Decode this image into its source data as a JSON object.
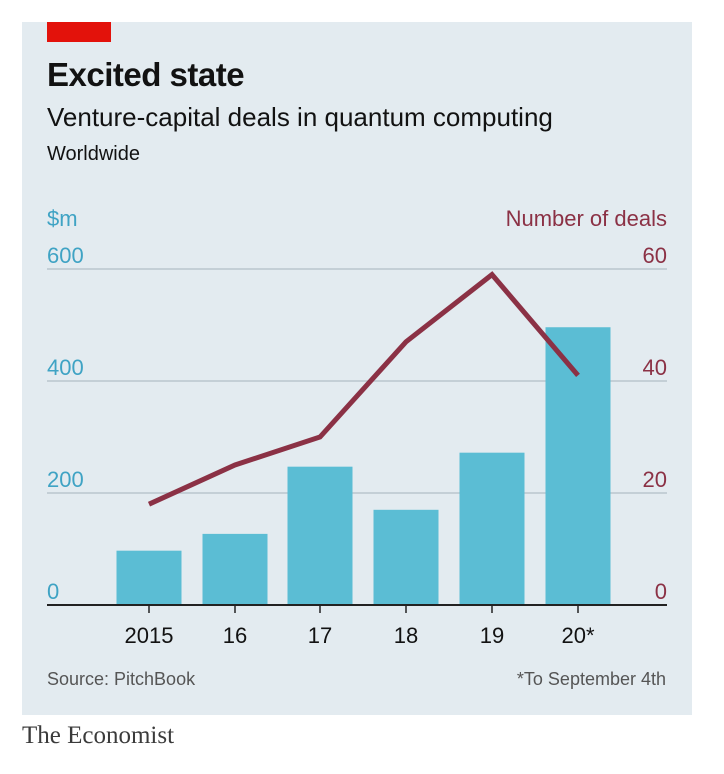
{
  "header": {
    "title": "Excited state",
    "subtitle": "Venture-capital deals in quantum computing",
    "scope": "Worldwide"
  },
  "footer": {
    "source": "Source: PitchBook",
    "footnote": "*To September 4th"
  },
  "brand": "The Economist",
  "colors": {
    "bars": "#5bbdd4",
    "line": "#8b3145",
    "left_axis": "#3fa3c4",
    "right_axis": "#8b3145",
    "panel": "#e3ebf0",
    "accent": "#e3120b"
  },
  "chart_data": {
    "type": "bar",
    "categories": [
      "2015",
      "16",
      "17",
      "18",
      "19",
      "20*"
    ],
    "left_axis": {
      "label": "$m",
      "ylim": [
        0,
        600
      ],
      "ticks": [
        "0",
        "200",
        "400",
        "600"
      ]
    },
    "right_axis": {
      "label": "Number of deals",
      "ylim": [
        0,
        60
      ],
      "ticks": [
        "0",
        "20",
        "40",
        "60"
      ]
    },
    "series": [
      {
        "type": "bar",
        "axis": "left",
        "values": [
          97,
          127,
          247,
          170,
          272,
          496
        ]
      },
      {
        "type": "line",
        "axis": "right",
        "values": [
          18,
          25,
          30,
          47,
          59,
          41
        ]
      }
    ],
    "grid": true
  }
}
